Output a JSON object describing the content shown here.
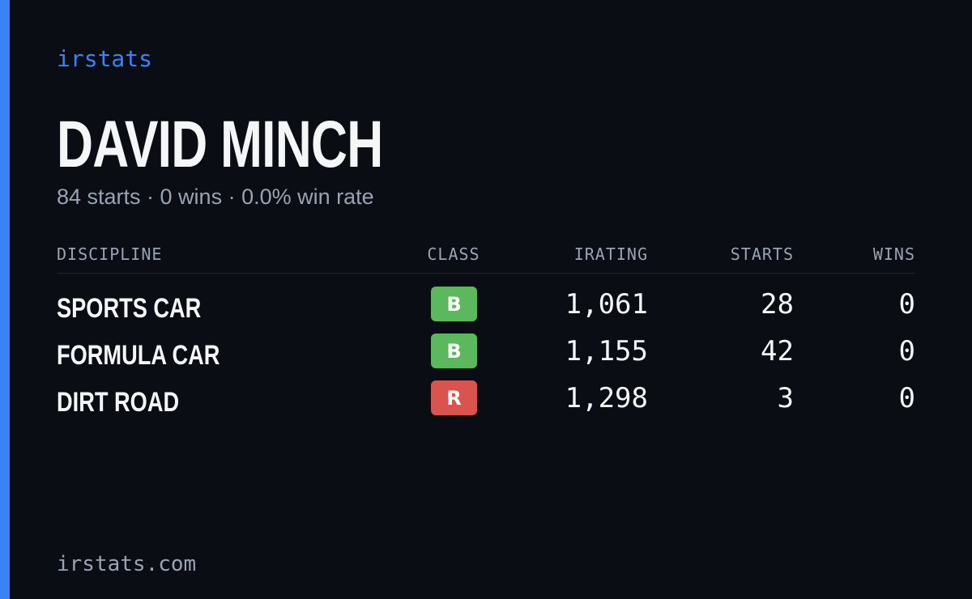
{
  "header": {
    "brand": "irstats",
    "name": "DAVID MINCH",
    "summary": "84 starts · 0 wins · 0.0% win rate"
  },
  "table": {
    "columns": [
      "DISCIPLINE",
      "CLASS",
      "IRATING",
      "STARTS",
      "WINS"
    ],
    "rows": [
      {
        "discipline": "SPORTS CAR",
        "class": "B",
        "class_color": "#5cb85c",
        "irating": "1,061",
        "starts": "28",
        "wins": "0"
      },
      {
        "discipline": "FORMULA CAR",
        "class": "B",
        "class_color": "#5cb85c",
        "irating": "1,155",
        "starts": "42",
        "wins": "0"
      },
      {
        "discipline": "DIRT ROAD",
        "class": "R",
        "class_color": "#d9534f",
        "irating": "1,298",
        "starts": "3",
        "wins": "0"
      }
    ]
  },
  "footer": {
    "site": "irstats.com"
  }
}
